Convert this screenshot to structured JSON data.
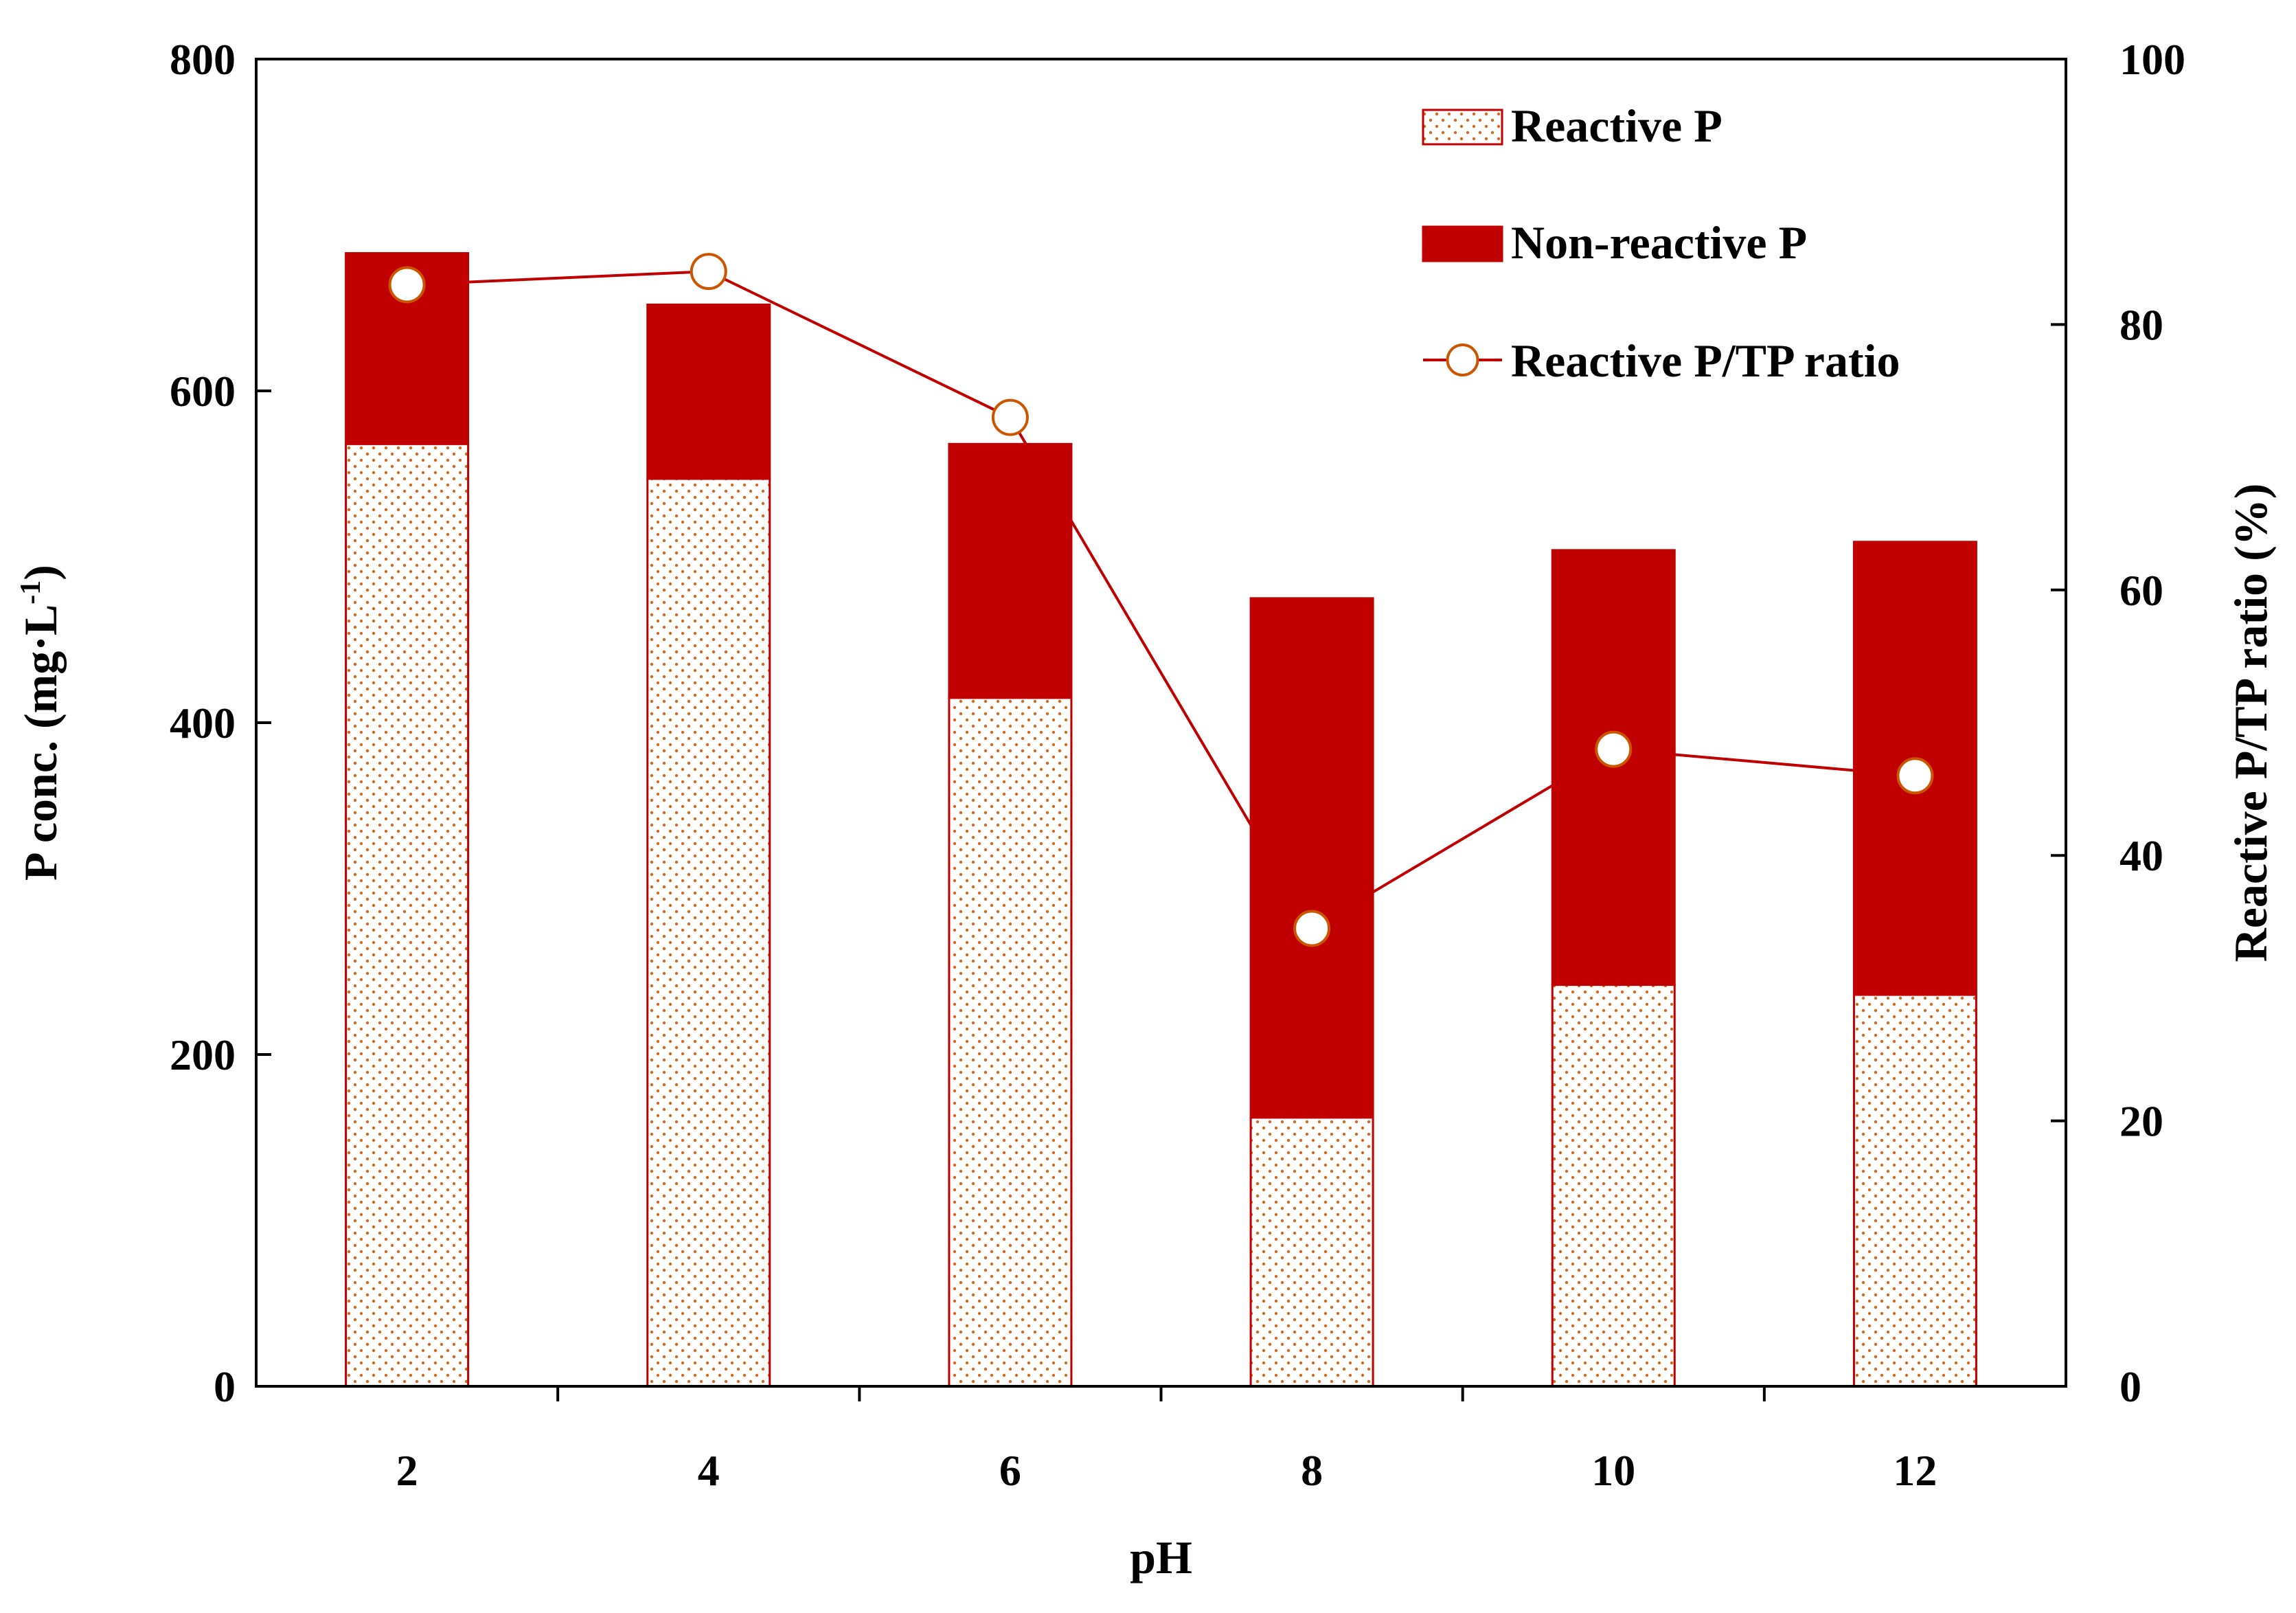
{
  "chart_data": {
    "type": "bar",
    "stacked": true,
    "categories": [
      "2",
      "4",
      "6",
      "8",
      "10",
      "12"
    ],
    "series": [
      {
        "name": "Reactive P",
        "type": "bar",
        "axis": "left",
        "style": "dotted",
        "values": [
          568,
          547,
          415,
          162,
          242,
          236
        ]
      },
      {
        "name": "Non-reactive P",
        "type": "bar",
        "axis": "left",
        "style": "solid",
        "values": [
          115,
          105,
          153,
          313,
          262,
          273
        ]
      },
      {
        "name": "Reactive P/TP ratio",
        "type": "line",
        "axis": "right",
        "marker": "open-circle",
        "values": [
          83,
          84,
          73,
          34.5,
          48,
          46
        ]
      }
    ],
    "xlabel": "pH",
    "ylabel": "P conc. (mg·L",
    "ylabel_sup": "-1",
    "ylabel_end": ")",
    "y2label": "Reactive P/TP ratio (%)",
    "ylim": [
      0,
      800
    ],
    "y2lim": [
      0,
      100
    ],
    "yticks": [
      0,
      200,
      400,
      600,
      800
    ],
    "y2ticks": [
      0,
      20,
      40,
      60,
      80,
      100
    ],
    "legend_position": "top-right",
    "grid": false
  },
  "colors": {
    "bar_dark": "#c00000",
    "dots": "#d2691e",
    "line": "#c00000",
    "marker_edge": "#cc5500",
    "axis": "#000000"
  }
}
